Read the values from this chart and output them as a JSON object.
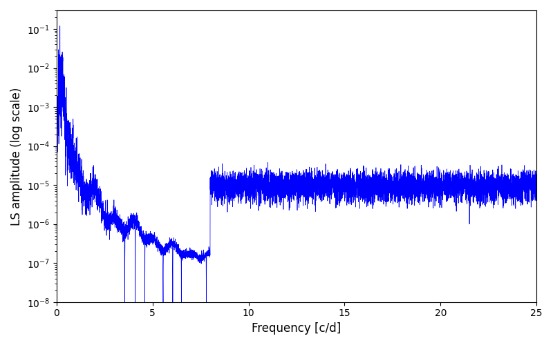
{
  "line_color": "#0000ff",
  "xlabel": "Frequency [c/d]",
  "ylabel": "LS amplitude (log scale)",
  "xlim": [
    0,
    25
  ],
  "ylim": [
    1e-08,
    0.3
  ],
  "freq_max": 25.0,
  "n_points": 8000,
  "background_color": "#ffffff",
  "figsize": [
    8.0,
    5.0
  ],
  "dpi": 100,
  "noise_floor": 8e-06,
  "peak_amplitude": 0.12,
  "linewidth": 0.5,
  "xticks": [
    0,
    5,
    10,
    15,
    20,
    25
  ]
}
